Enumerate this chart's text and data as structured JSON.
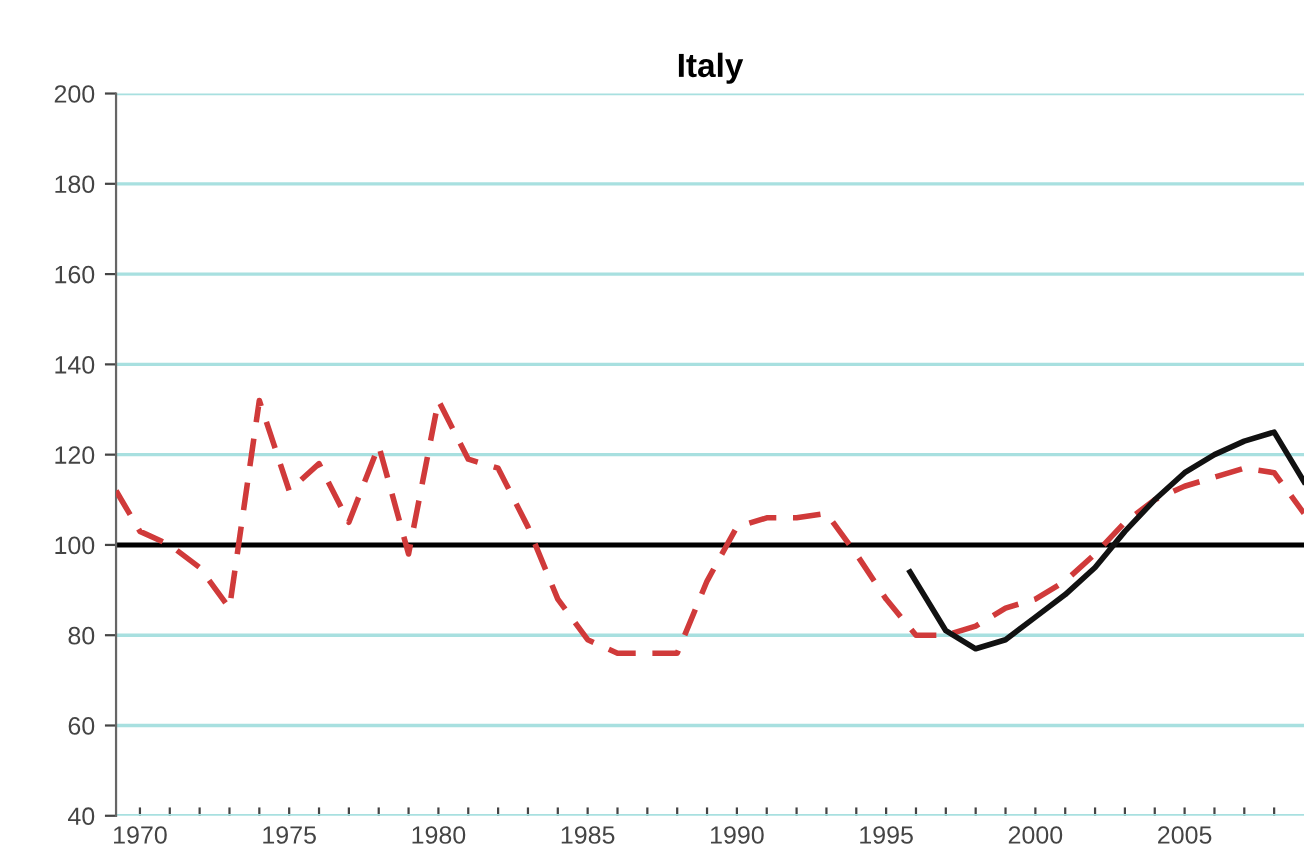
{
  "chart_data": {
    "type": "line",
    "title": "Italy",
    "series": [
      {
        "color": "#d03a3a",
        "line_style": "dashed",
        "x": [
          1969.2,
          1970,
          1971,
          1972,
          1973,
          1974,
          1975,
          1976,
          1977,
          1978,
          1979,
          1980,
          1981,
          1982,
          1983,
          1984,
          1985,
          1986,
          1987,
          1988,
          1989,
          1990,
          1991,
          1992,
          1993,
          1994,
          1995,
          1996,
          1997,
          1998,
          1999,
          2000,
          2001,
          2002,
          2003,
          2004,
          2005,
          2006,
          2007,
          2008,
          2009
        ],
        "values": [
          112,
          103,
          100,
          95,
          86,
          132,
          112,
          118,
          105,
          122,
          98,
          132,
          119,
          117,
          104,
          88,
          79,
          76,
          76,
          76,
          92,
          104,
          106,
          106,
          107,
          98,
          88,
          80,
          80,
          82,
          86,
          88,
          92,
          98,
          105,
          110,
          113,
          115,
          117,
          116,
          107
        ]
      },
      {
        "color": "#111111",
        "line_style": "solid",
        "x": [
          1995.8,
          1997,
          1998,
          1999,
          2000,
          2001,
          2002,
          2003,
          2004,
          2005,
          2006,
          2007,
          2008,
          2009
        ],
        "values": [
          94,
          81,
          77,
          79,
          84,
          89,
          95,
          103,
          110,
          116,
          120,
          123,
          125,
          114
        ]
      }
    ],
    "xlim": [
      1969.2,
      2009
    ],
    "xticks": [
      1970,
      {
        "value": 1971,
        "label": null
      },
      {
        "value": 1972,
        "label": null
      },
      {
        "value": 1973,
        "label": null
      },
      {
        "value": 1974,
        "label": null
      },
      1975,
      {
        "value": 1976,
        "label": null
      },
      {
        "value": 1977,
        "label": null
      },
      {
        "value": 1978,
        "label": null
      },
      {
        "value": 1979,
        "label": null
      },
      1980,
      {
        "value": 1981,
        "label": null
      },
      {
        "value": 1982,
        "label": null
      },
      {
        "value": 1983,
        "label": null
      },
      {
        "value": 1984,
        "label": null
      },
      1985,
      {
        "value": 1986,
        "label": null
      },
      {
        "value": 1987,
        "label": null
      },
      {
        "value": 1988,
        "label": null
      },
      {
        "value": 1989,
        "label": null
      },
      1990,
      {
        "value": 1991,
        "label": null
      },
      {
        "value": 1992,
        "label": null
      },
      {
        "value": 1993,
        "label": null
      },
      {
        "value": 1994,
        "label": null
      },
      1995,
      {
        "value": 1996,
        "label": null
      },
      {
        "value": 1997,
        "label": null
      },
      {
        "value": 1998,
        "label": null
      },
      {
        "value": 1999,
        "label": null
      },
      2000,
      {
        "value": 2001,
        "label": null
      },
      {
        "value": 2002,
        "label": null
      },
      {
        "value": 2003,
        "label": null
      },
      {
        "value": 2004,
        "label": null
      },
      2005,
      {
        "value": 2006,
        "label": null
      },
      {
        "value": 2007,
        "label": null
      },
      {
        "value": 2008,
        "label": null
      }
    ],
    "ylim": [
      40,
      200
    ],
    "yticks": [
      40,
      60,
      80,
      100,
      120,
      140,
      160,
      180,
      200
    ],
    "grid": "y",
    "ref_lines": [
      {
        "axis": "y",
        "value": 100,
        "color": "#000000",
        "line_style": "solid"
      }
    ]
  }
}
